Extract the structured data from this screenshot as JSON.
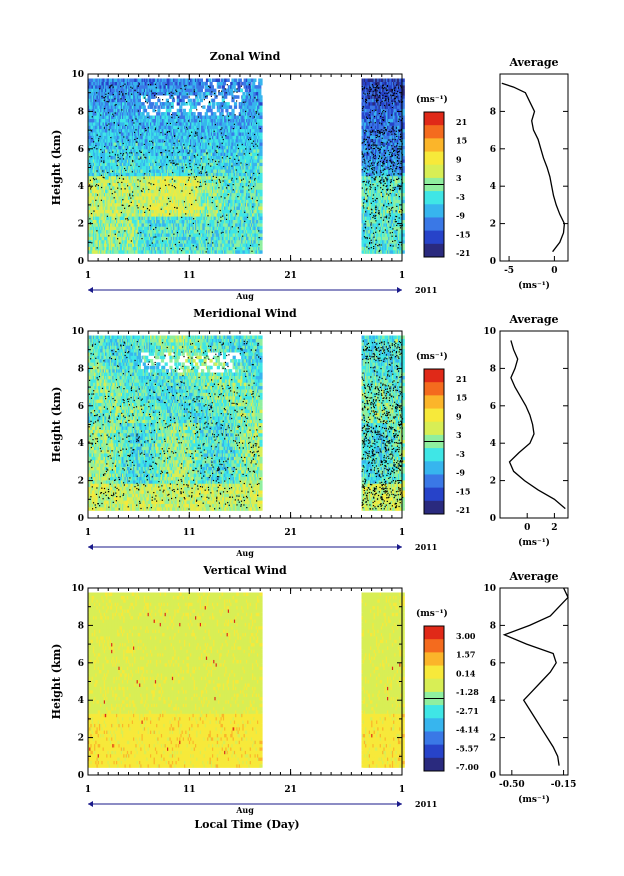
{
  "chart_data": [
    {
      "type": "heatmap",
      "title": "Zonal Wind",
      "ylabel": "Height (km)",
      "xlabel": "Aug",
      "year_label": "2011",
      "xlim": [
        1,
        32
      ],
      "ylim": [
        0,
        10
      ],
      "x_ticks": [
        "1",
        "11",
        "21",
        "1"
      ],
      "y_ticks": [
        "0",
        "2",
        "4",
        "6",
        "8",
        "10"
      ],
      "data_coverage_days": [
        [
          1,
          18
        ],
        [
          28,
          32
        ]
      ],
      "colorbar": {
        "unit": "(ms⁻¹)",
        "labels": [
          "21",
          "15",
          "9",
          "3",
          "-3",
          "-9",
          "-15",
          "-21"
        ],
        "range": [
          -24,
          24
        ]
      },
      "average_profile": {
        "title": "Average",
        "xlabel": "(ms⁻¹)",
        "x_ticks": [
          "-5",
          "0"
        ],
        "xlim": [
          -6,
          1.5
        ],
        "y_ticks": [
          "0",
          "2",
          "4",
          "6",
          "8"
        ],
        "height_km": [
          0.5,
          1,
          1.5,
          2,
          2.5,
          3,
          3.5,
          4,
          4.5,
          5,
          5.5,
          6,
          6.5,
          7,
          7.5,
          8,
          8.5,
          9,
          9.3,
          9.5
        ],
        "value": [
          -0.2,
          0.6,
          1.0,
          1.1,
          0.6,
          0.2,
          -0.1,
          -0.3,
          -0.5,
          -0.8,
          -1.2,
          -1.5,
          -1.8,
          -2.3,
          -2.5,
          -2.2,
          -2.7,
          -3.2,
          -4.5,
          -5.8
        ]
      }
    },
    {
      "type": "heatmap",
      "title": "Meridional Wind",
      "ylabel": "Height (km)",
      "xlabel": "Aug",
      "year_label": "2011",
      "xlim": [
        1,
        32
      ],
      "ylim": [
        0,
        10
      ],
      "x_ticks": [
        "1",
        "11",
        "21",
        "1"
      ],
      "y_ticks": [
        "0",
        "2",
        "4",
        "6",
        "8",
        "10"
      ],
      "data_coverage_days": [
        [
          1,
          18
        ],
        [
          28,
          32
        ]
      ],
      "colorbar": {
        "unit": "(ms⁻¹)",
        "labels": [
          "21",
          "15",
          "9",
          "3",
          "-3",
          "-9",
          "-15",
          "-21"
        ],
        "range": [
          -24,
          24
        ]
      },
      "average_profile": {
        "title": "Average",
        "xlabel": "(ms⁻¹)",
        "x_ticks": [
          "0",
          "2"
        ],
        "xlim": [
          -2,
          3
        ],
        "y_ticks": [
          "0",
          "2",
          "4",
          "6",
          "8",
          "10"
        ],
        "height_km": [
          0.5,
          1,
          1.5,
          2,
          2.5,
          3,
          3.5,
          4,
          4.5,
          5,
          5.5,
          6,
          6.5,
          7,
          7.5,
          8,
          8.5,
          9,
          9.5
        ],
        "value": [
          2.8,
          2.0,
          0.8,
          -0.2,
          -1.0,
          -1.3,
          -0.6,
          0.2,
          0.5,
          0.4,
          0.2,
          -0.1,
          -0.5,
          -0.9,
          -1.2,
          -0.9,
          -0.7,
          -1.0,
          -1.2
        ]
      }
    },
    {
      "type": "heatmap",
      "title": "Vertical Wind",
      "ylabel": "Height (km)",
      "xlabel": "Aug",
      "axis_title": "Local Time (Day)",
      "year_label": "2011",
      "xlim": [
        1,
        32
      ],
      "ylim": [
        0,
        10
      ],
      "x_ticks": [
        "1",
        "11",
        "21",
        "1"
      ],
      "y_ticks": [
        "0",
        "2",
        "4",
        "6",
        "8",
        "10"
      ],
      "data_coverage_days": [
        [
          1,
          18
        ],
        [
          28,
          32
        ]
      ],
      "colorbar": {
        "unit": "(ms⁻¹)",
        "labels": [
          "3.00",
          "1.57",
          "0.14",
          "-1.28",
          "-2.71",
          "-4.14",
          "-5.57",
          "-7.00"
        ],
        "range": [
          -7.7,
          3.7
        ]
      },
      "average_profile": {
        "title": "Average",
        "xlabel": "(ms⁻¹)",
        "x_ticks": [
          "-0.50",
          "-0.15"
        ],
        "xlim": [
          -0.58,
          -0.12
        ],
        "y_ticks": [
          "0",
          "2",
          "4",
          "6",
          "8",
          "10"
        ],
        "height_km": [
          0.5,
          1,
          1.5,
          2,
          2.5,
          3,
          3.5,
          4,
          4.5,
          5,
          5.5,
          6,
          6.5,
          7,
          7.5,
          8,
          8.5,
          9,
          9.5,
          10
        ],
        "value": [
          -0.18,
          -0.19,
          -0.22,
          -0.26,
          -0.3,
          -0.34,
          -0.38,
          -0.42,
          -0.36,
          -0.3,
          -0.24,
          -0.2,
          -0.22,
          -0.4,
          -0.55,
          -0.38,
          -0.24,
          -0.18,
          -0.12,
          -0.15
        ]
      }
    }
  ],
  "colors": {
    "scale": [
      "#2a2a7e",
      "#2743c9",
      "#3a78e6",
      "#37b5ee",
      "#3fe6e6",
      "#8fef9f",
      "#d8ee55",
      "#f7e93a",
      "#fbb52a",
      "#f46b1e",
      "#e02918"
    ]
  }
}
